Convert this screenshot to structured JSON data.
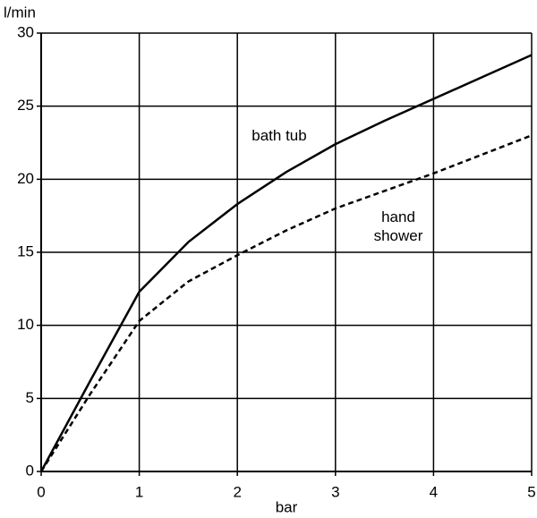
{
  "chart_data": {
    "type": "line",
    "x_label": "bar",
    "y_label": "l/min",
    "x": [
      0,
      0.5,
      1,
      1.5,
      2,
      2.5,
      3,
      3.5,
      4,
      4.5,
      5
    ],
    "series": [
      {
        "name": "bath tub",
        "color": "#000000",
        "dash": false,
        "values": [
          0,
          6.2,
          12.3,
          15.7,
          18.3,
          20.5,
          22.4,
          24.0,
          25.5,
          27.0,
          28.5
        ]
      },
      {
        "name": "hand shower",
        "color": "#000000",
        "dash": true,
        "values": [
          0,
          5.3,
          10.3,
          13.0,
          14.8,
          16.5,
          18.0,
          19.2,
          20.4,
          21.7,
          23.0
        ]
      }
    ],
    "xlim": [
      0,
      5
    ],
    "xticks": [
      0,
      1,
      2,
      3,
      4,
      5
    ],
    "ylim": [
      0,
      30
    ],
    "yticks": [
      0,
      5,
      10,
      15,
      20,
      25,
      30
    ],
    "grid": true
  }
}
